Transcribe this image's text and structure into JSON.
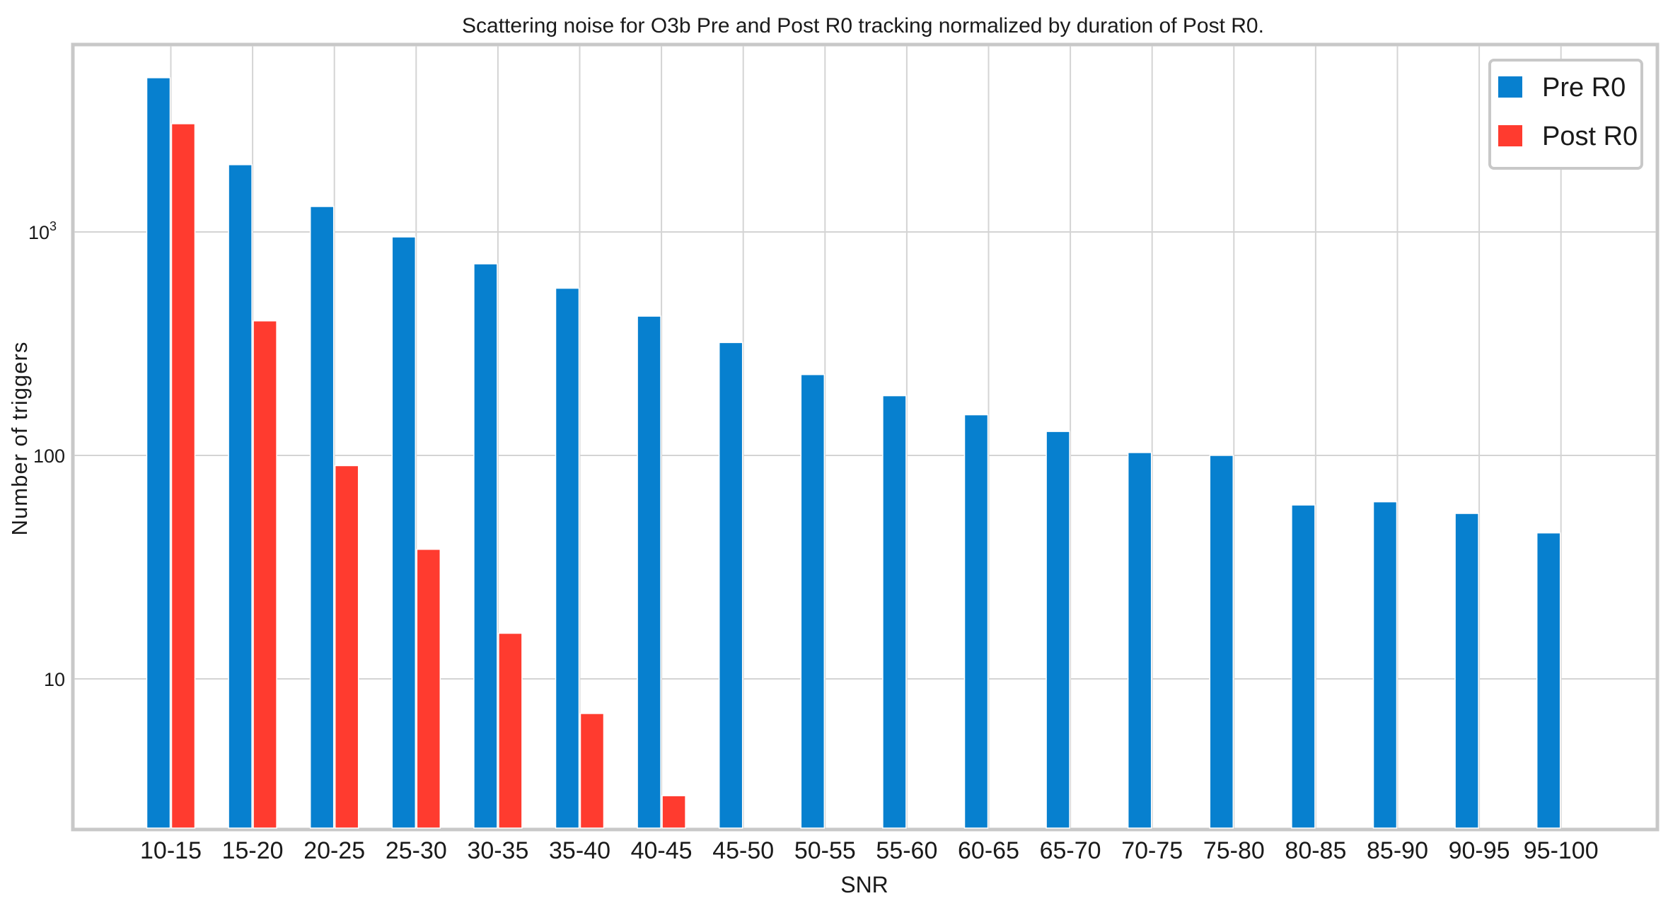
{
  "chart_data": {
    "type": "bar",
    "title": "Scattering noise for O3b Pre and Post R0 tracking normalized by duration of Post R0.",
    "xlabel": "SNR",
    "ylabel": "Number of triggers",
    "yscale": "log",
    "ylim": [
      2,
      7000
    ],
    "yticks": [
      {
        "value": 10,
        "label": "10",
        "sup": ""
      },
      {
        "value": 100,
        "label": "100",
        "sup": ""
      },
      {
        "value": 1000,
        "label": "10",
        "sup": "3"
      }
    ],
    "grid": true,
    "legend_position": "top-right",
    "categories": [
      "10-15",
      "15-20",
      "20-25",
      "25-30",
      "30-35",
      "35-40",
      "40-45",
      "45-50",
      "50-55",
      "55-60",
      "60-65",
      "65-70",
      "70-75",
      "75-80",
      "80-85",
      "85-90",
      "90-95",
      "95-100"
    ],
    "series": [
      {
        "name": "Pre R0",
        "color": "#0780CF",
        "values": [
          4900,
          2000,
          1300,
          950,
          720,
          560,
          420,
          320,
          230,
          185,
          152,
          128,
          103,
          100,
          60,
          62,
          55,
          45
        ]
      },
      {
        "name": "Post R0",
        "color": "#FF3B2F",
        "values": [
          3050,
          400,
          90,
          38,
          16,
          7,
          3,
          null,
          null,
          null,
          null,
          null,
          null,
          null,
          null,
          null,
          null,
          null
        ]
      }
    ]
  }
}
